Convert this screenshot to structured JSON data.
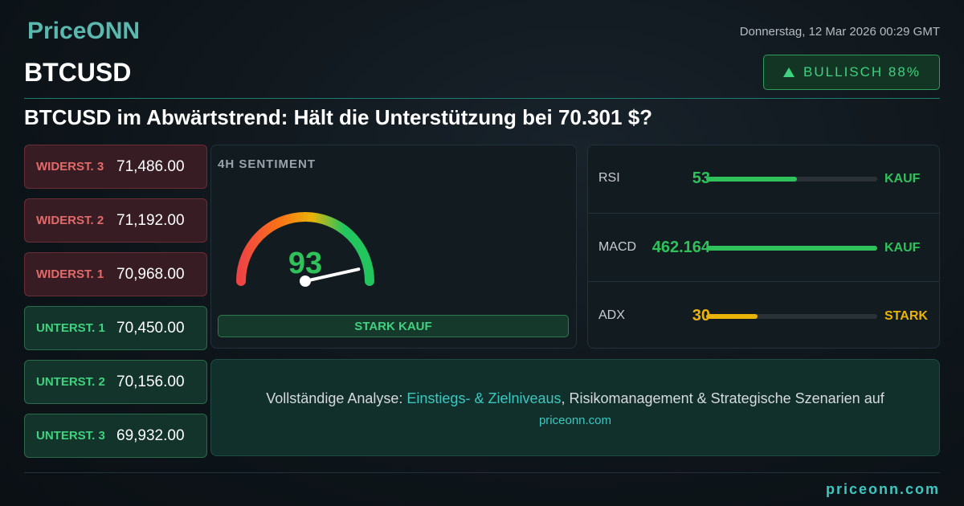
{
  "header": {
    "logo": "PriceONN",
    "date": "Donnerstag, 12 Mar 2026 00:29 GMT",
    "symbol": "BTCUSD",
    "badge": "BULLISCH 88%"
  },
  "headline": "BTCUSD im Abwärtstrend: Hält die Unterstützung bei 70.301 $?",
  "levels": [
    {
      "label": "WIDERST. 3",
      "value": "71,486.00",
      "color": "#e46a6a"
    },
    {
      "label": "WIDERST. 2",
      "value": "71,192.00",
      "color": "#e46a6a"
    },
    {
      "label": "WIDERST. 1",
      "value": "70,968.00",
      "color": "#e46a6a"
    },
    {
      "label": "UNTERST. 1",
      "value": "70,450.00",
      "color": "#3fd27f"
    },
    {
      "label": "UNTERST. 2",
      "value": "70,156.00",
      "color": "#3fd27f"
    },
    {
      "label": "UNTERST. 3",
      "value": "69,932.00",
      "color": "#3fd27f"
    }
  ],
  "sentiment": {
    "title": "4H SENTIMENT",
    "score": 93,
    "verdict": "STARK KAUF"
  },
  "indicators": [
    {
      "name": "RSI",
      "value": 53,
      "status": "KAUF",
      "color": "#2fc25b"
    },
    {
      "name": "MACD",
      "value": "462.164",
      "status": "KAUF",
      "color": "#2fc25b"
    },
    {
      "name": "ADX",
      "value": 30,
      "status": "STARK",
      "color": "#eab308"
    }
  ],
  "footer": {
    "text_before": "Vollständige Analyse:",
    "link": "Einstiegs- & Zielniveaus",
    "text_after": ", Risikomanagement & Strategische Szenarien auf",
    "site": "priceonn.com"
  },
  "brand": "priceonn.com"
}
